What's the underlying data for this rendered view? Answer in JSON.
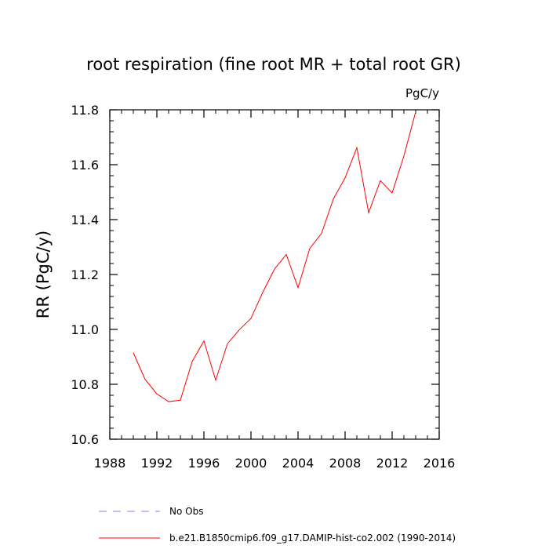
{
  "chart_data": {
    "type": "line",
    "title": "root respiration (fine root MR + total root GR)",
    "units": "PgC/y",
    "ylabel": "RR  (PgC/y)",
    "xlabel": "",
    "xlim": [
      1988,
      2016
    ],
    "ylim": [
      10.6,
      11.8
    ],
    "x_major_ticks": [
      1988,
      1992,
      1996,
      2000,
      2004,
      2008,
      2012,
      2016
    ],
    "x_minor_step": 1,
    "y_major_ticks": [
      10.6,
      10.8,
      11.0,
      11.2,
      11.4,
      11.6,
      11.8
    ],
    "y_tick_labels": [
      "10.6",
      "10.8",
      "11.0",
      "11.2",
      "11.4",
      "11.6",
      "11.8"
    ],
    "y_minor_step": 0.04,
    "grid": false,
    "legend_position": "bottom",
    "series": [
      {
        "name": "b.e21.B1850cmip6.f09_g17.DAMIP-hist-co2.002 (1990-2014)",
        "color": "#ff0000",
        "style": "solid",
        "x": [
          1990,
          1991,
          1992,
          1993,
          1994,
          1995,
          1996,
          1997,
          1998,
          1999,
          2000,
          2001,
          2002,
          2003,
          2004,
          2005,
          2006,
          2007,
          2008,
          2009,
          2010,
          2011,
          2012,
          2013,
          2014
        ],
        "y": [
          10.915,
          10.818,
          10.765,
          10.737,
          10.742,
          10.883,
          10.958,
          10.815,
          10.948,
          10.998,
          11.04,
          11.135,
          11.22,
          11.273,
          11.152,
          11.295,
          11.35,
          11.475,
          11.552,
          11.662,
          11.425,
          11.542,
          11.497,
          11.632,
          11.793
        ]
      },
      {
        "name": "No Obs",
        "color": "#8080ff",
        "style": "dashed",
        "x": [],
        "y": []
      }
    ]
  }
}
